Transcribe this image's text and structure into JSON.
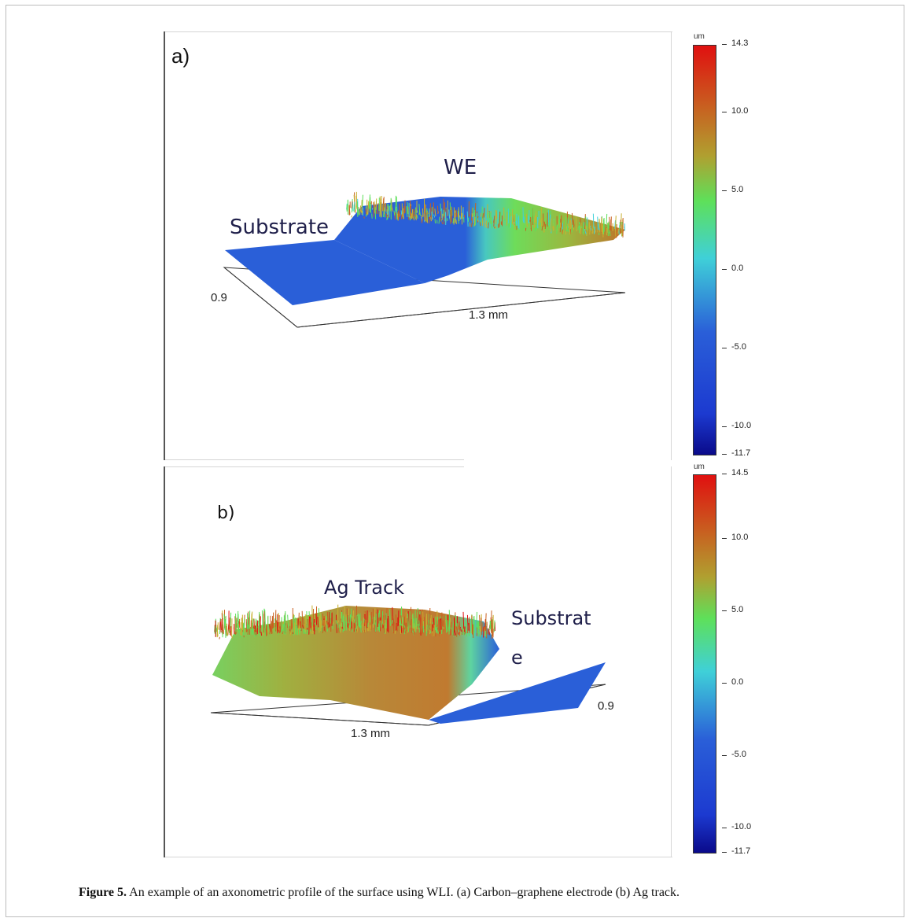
{
  "panel_a": {
    "label": "a)",
    "region_left": "Substrate",
    "region_right": "WE",
    "axis_depth": "0.9",
    "axis_length": "1.3 mm",
    "colorbar": {
      "unit": "um",
      "ticks": [
        "14.3",
        "10.0",
        "5.0",
        "0.0",
        "-5.0",
        "-10.0",
        "-11.7"
      ]
    }
  },
  "panel_b": {
    "label": "b)",
    "region_left": "Ag Track",
    "region_right_line1": "Substrat",
    "region_right_line2": "e",
    "axis_depth": "0.9",
    "axis_length": "1.3 mm",
    "colorbar": {
      "unit": "um",
      "ticks": [
        "14.5",
        "10.0",
        "5.0",
        "0.0",
        "-5.0",
        "-10.0",
        "-11.7"
      ]
    }
  },
  "caption": {
    "figure_number": "Figure 5.",
    "text": "An example of an axonometric profile of the surface using WLI. (a) Carbon–graphene electrode (b) Ag track."
  },
  "colors": {
    "low": "#0a0a8a",
    "mid_blue": "#2a5fd8",
    "cyan": "#3fd0d8",
    "green": "#5ee05a",
    "yellow": "#c8b030",
    "orange": "#c86020",
    "high": "#e01010"
  }
}
